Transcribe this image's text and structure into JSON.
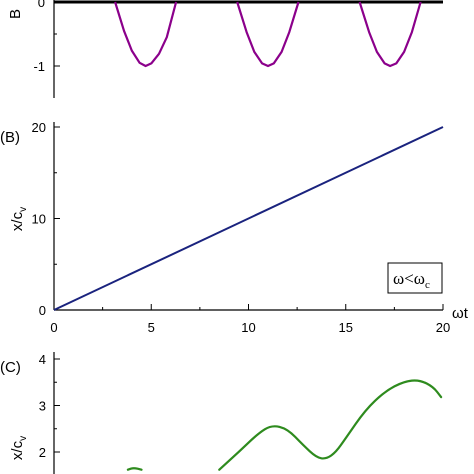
{
  "chart_data": [
    {
      "panel": "",
      "type": "line",
      "ylabel": "B",
      "yticks": [
        "0",
        "-1"
      ],
      "series": [
        {
          "color": "#8b008b",
          "x": [
            3.14,
            3.6,
            4.0,
            4.4,
            4.71,
            5.0,
            5.4,
            5.8,
            6.28,
            7.0,
            8.0,
            9.42,
            9.9,
            10.3,
            10.7,
            11.0,
            11.3,
            11.7,
            12.1,
            12.57,
            13.5,
            14.5,
            15.71,
            16.2,
            16.6,
            17.0,
            17.28,
            17.6,
            18.0,
            18.4,
            18.85,
            19.4,
            19.9
          ],
          "y": [
            0,
            -0.45,
            -0.76,
            -0.95,
            -1.0,
            -0.96,
            -0.81,
            -0.55,
            0,
            0,
            0,
            0,
            -0.47,
            -0.78,
            -0.96,
            -1.0,
            -0.96,
            -0.78,
            -0.47,
            0,
            0,
            0,
            0,
            -0.47,
            -0.78,
            -0.96,
            -1.0,
            -0.96,
            -0.78,
            -0.47,
            0,
            0,
            0
          ]
        }
      ]
    },
    {
      "panel": "(B)",
      "type": "line",
      "xlabel": "ωt",
      "ylabel": "x/c_v",
      "xlim": [
        0,
        20
      ],
      "ylim": [
        0,
        20
      ],
      "xticks": [
        "0",
        "5",
        "10",
        "15",
        "20"
      ],
      "yticks": [
        "0",
        "10",
        "20"
      ],
      "annotation": "ω<ω_c",
      "series": [
        {
          "color": "#1a237e",
          "x": [
            0,
            20
          ],
          "y": [
            0,
            20
          ]
        }
      ]
    },
    {
      "panel": "(C)",
      "type": "line",
      "ylabel": "x/c_v",
      "yticks": [
        "2",
        "3",
        "4"
      ],
      "series": [
        {
          "color": "#2e8b1e",
          "x": [
            3.8,
            4.1,
            4.5,
            8.5,
            9.5,
            10.5,
            11.2,
            12.0,
            12.8,
            13.5,
            14.0,
            14.5,
            15.0,
            16.0,
            17.0,
            18.0,
            18.8,
            19.5,
            19.9
          ],
          "y": [
            1.62,
            1.66,
            1.62,
            1.62,
            2.0,
            2.4,
            2.58,
            2.5,
            2.15,
            1.88,
            1.85,
            2.0,
            2.3,
            2.9,
            3.3,
            3.52,
            3.55,
            3.4,
            3.18
          ]
        }
      ]
    }
  ],
  "labels": {
    "panel_b": "(B)",
    "panel_c": "(C)",
    "annot_main": "ω<ω",
    "annot_sub": "c",
    "xlabel_b": "ωt",
    "ylabel_a": "B",
    "ylabel_b_main": "x/c",
    "ylabel_b_sub": "v",
    "ylabel_c_main": "x/c",
    "ylabel_c_sub": "v"
  },
  "colors": {
    "panel_a_line": "#8b008b",
    "panel_b_line": "#1a237e",
    "panel_c_line": "#2e8b1e"
  }
}
